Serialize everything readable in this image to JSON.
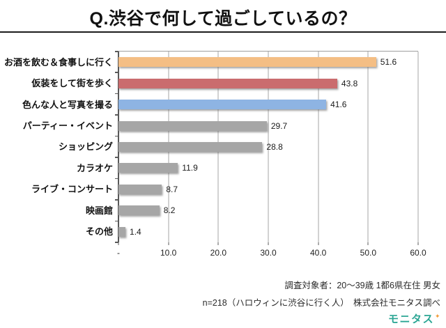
{
  "chart_data": {
    "type": "bar",
    "orientation": "horizontal",
    "title": "Q.渋谷で何して過ごしているの？",
    "categories": [
      "お酒を飲む＆食事しに行く",
      "仮装をして街を歩く",
      "色んな人と写真を撮る",
      "パーティー・イベント",
      "ショッピング",
      "カラオケ",
      "ライブ・コンサート",
      "映画館",
      "その他"
    ],
    "values": [
      51.6,
      43.8,
      41.6,
      29.7,
      28.8,
      11.9,
      8.7,
      8.2,
      1.4
    ],
    "bar_colors": [
      "#F4BE84",
      "#CA6C6E",
      "#8EB4E3",
      "#A6A6A6",
      "#A6A6A6",
      "#A6A6A6",
      "#A6A6A6",
      "#A6A6A6",
      "#A6A6A6"
    ],
    "xlabel": "",
    "ylabel": "",
    "xlim": [
      0,
      60
    ],
    "x_ticks": [
      "-",
      "10.0",
      "20.0",
      "30.0",
      "40.0",
      "50.0",
      "60.0"
    ],
    "grid": true,
    "legend": "none"
  },
  "footer": {
    "line1": "調査対象者：20〜39歳 1都6県在住 男女",
    "line2": "n=218（ハロウィンに渋谷に行く人）　株式会社モニタス調べ"
  },
  "logo": {
    "text": "モニタス",
    "color": "#2CA694",
    "sparkle": "✦",
    "sparkle_color": "#F29B38"
  }
}
